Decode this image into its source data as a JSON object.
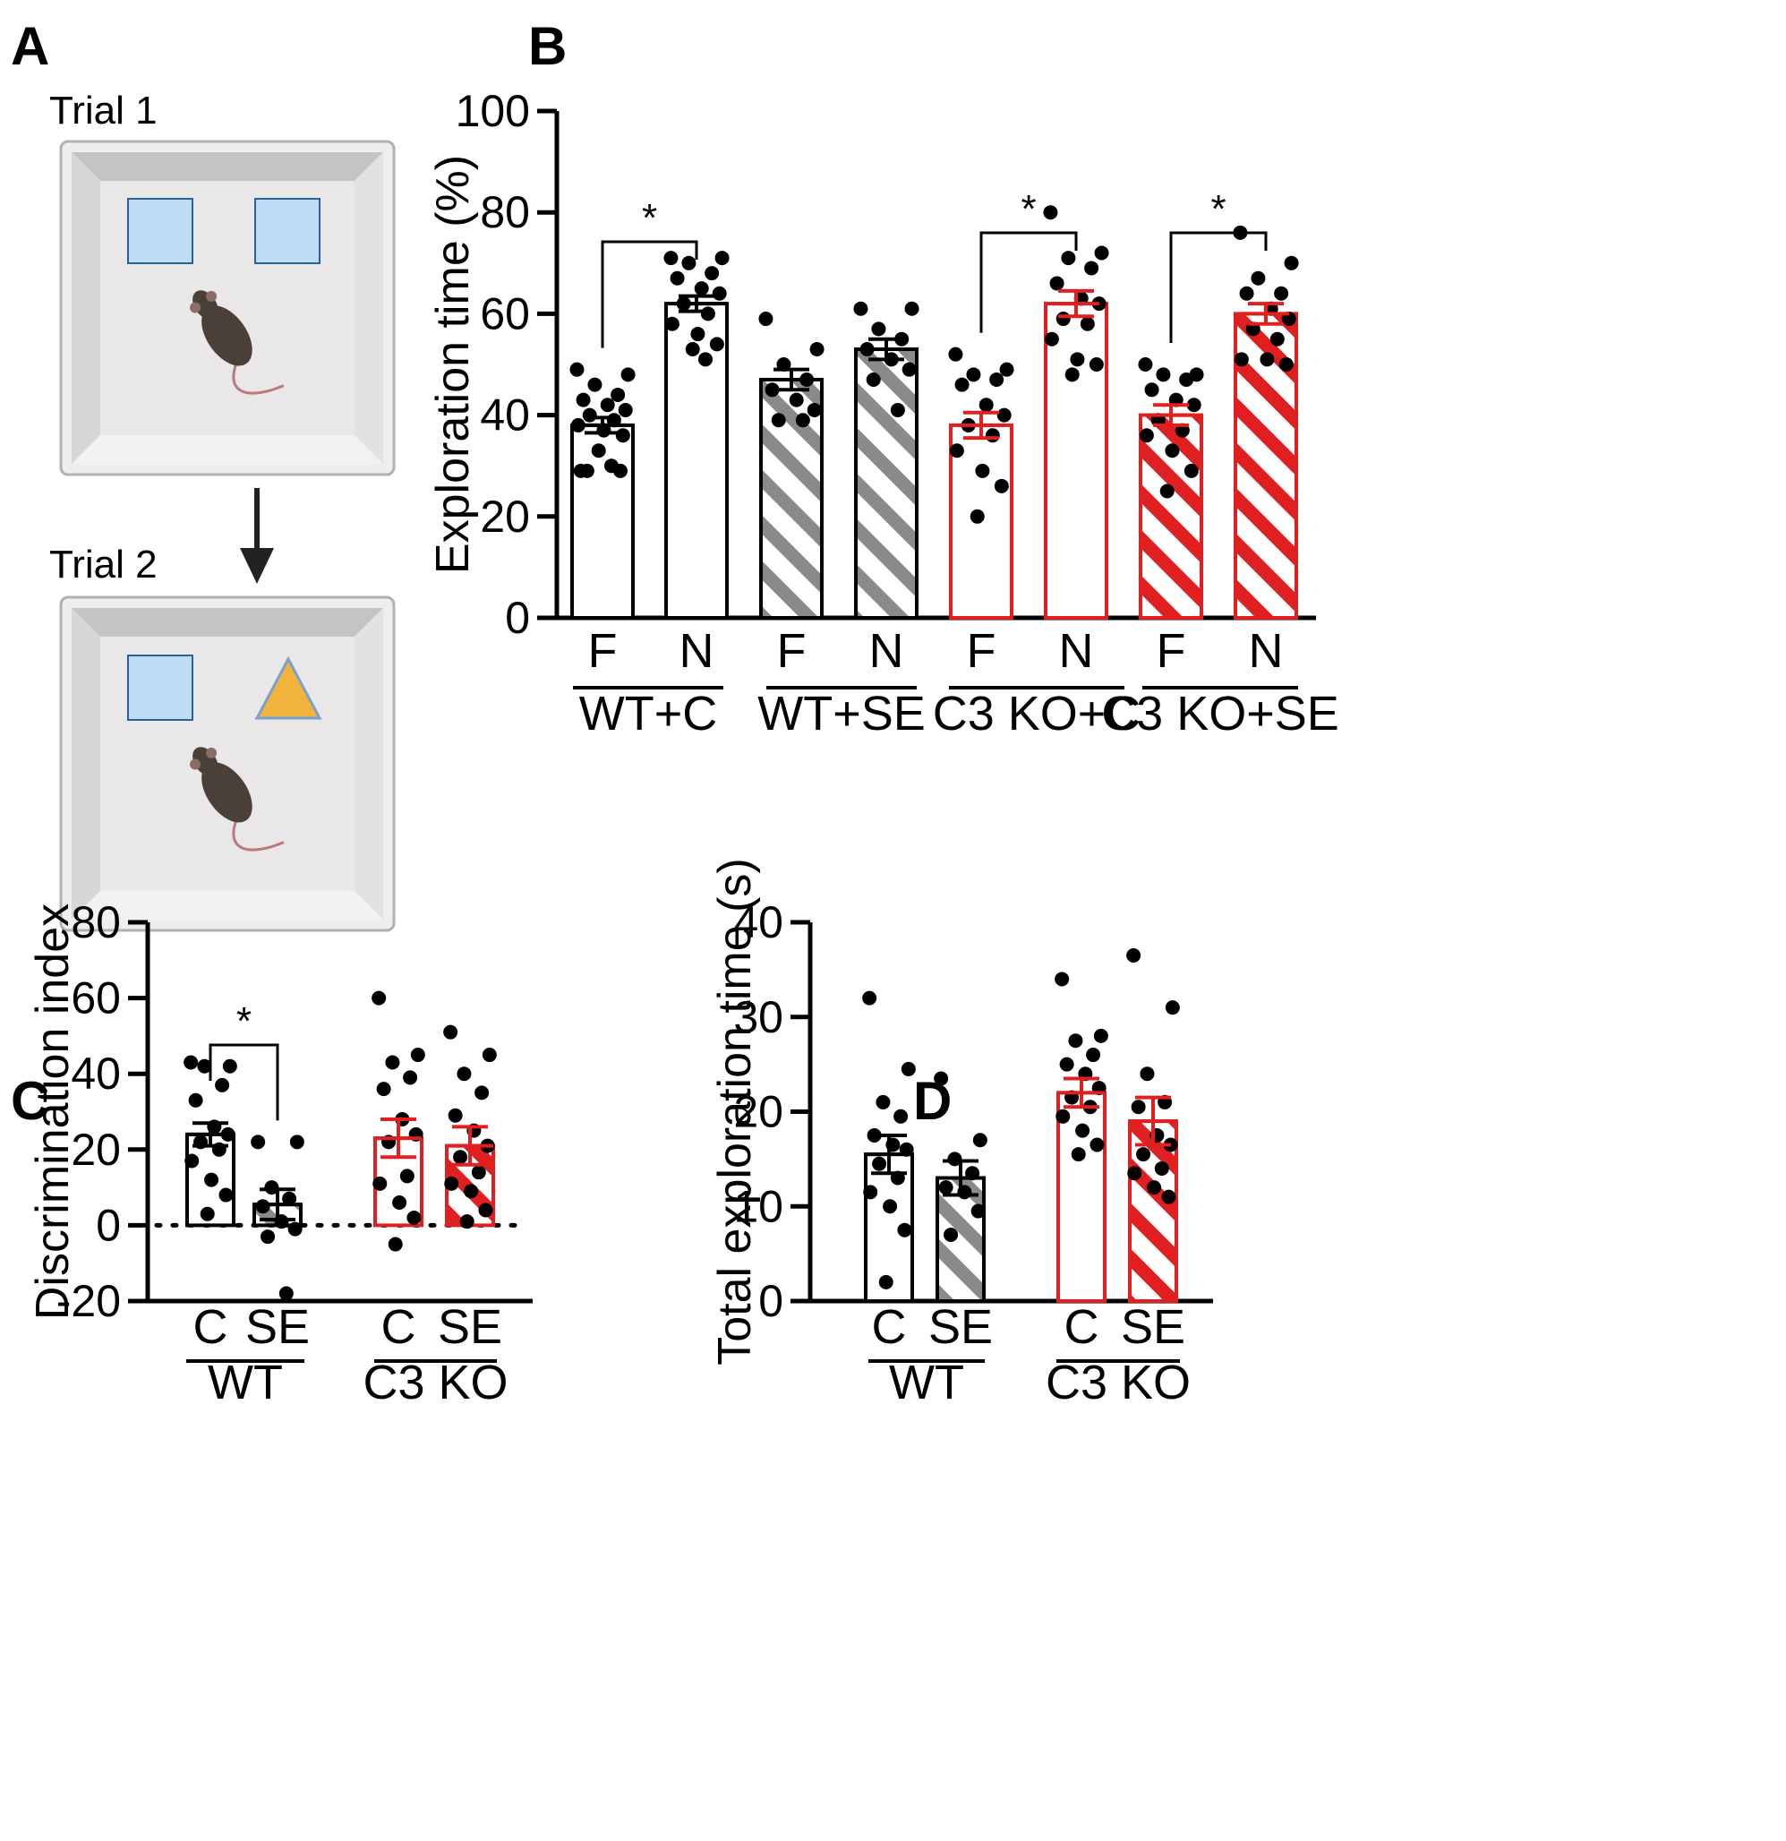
{
  "panel_labels": {
    "a": "A",
    "b": "B",
    "c": "C",
    "d": "D"
  },
  "schematic": {
    "trial1": "Trial 1",
    "trial2": "Trial 2",
    "object_colors": {
      "square": "#bcdcf4",
      "square_edge": "#2d5f9a",
      "triangle": "#f2b33d",
      "triangle_edge": "#7aa0d0"
    }
  },
  "colors": {
    "black": "#000000",
    "red": "#e02020",
    "gray": "#8a8a8a"
  },
  "chart_data": [
    {
      "id": "B",
      "type": "bar",
      "ylabel": "Exploration time (%)",
      "ylim": [
        0,
        100
      ],
      "yticks": [
        0,
        20,
        40,
        60,
        80,
        100
      ],
      "groups": [
        "WT+C",
        "WT+SE",
        "C3 KO+C",
        "C3 KO+SE"
      ],
      "bars": [
        {
          "label": "F",
          "group": "WT+C",
          "mean": 38,
          "sem": 1.5,
          "color": "black",
          "hatch": false,
          "points": [
            49,
            48,
            46,
            44,
            43,
            42,
            41,
            40,
            39,
            38,
            37,
            36,
            33,
            30,
            29,
            29,
            29
          ]
        },
        {
          "label": "N",
          "group": "WT+C",
          "mean": 62,
          "sem": 1.5,
          "color": "black",
          "hatch": false,
          "points": [
            71,
            71,
            70,
            68,
            67,
            65,
            64,
            62,
            60,
            58,
            56,
            54,
            53,
            51
          ]
        },
        {
          "label": "F",
          "group": "WT+SE",
          "mean": 47,
          "sem": 2,
          "color": "gray",
          "hatch": true,
          "points": [
            59,
            53,
            50,
            47,
            45,
            43,
            41,
            39,
            39
          ]
        },
        {
          "label": "N",
          "group": "WT+SE",
          "mean": 53,
          "sem": 2,
          "color": "gray",
          "hatch": true,
          "points": [
            61,
            61,
            57,
            55,
            53,
            51,
            49,
            47,
            41
          ]
        },
        {
          "label": "F",
          "group": "C3 KO+C",
          "mean": 38,
          "sem": 2.5,
          "color": "red",
          "hatch": false,
          "points": [
            52,
            49,
            48,
            47,
            46,
            42,
            40,
            38,
            36,
            33,
            29,
            26,
            20
          ]
        },
        {
          "label": "N",
          "group": "C3 KO+C",
          "mean": 62,
          "sem": 2.5,
          "color": "red",
          "hatch": false,
          "points": [
            80,
            72,
            71,
            69,
            66,
            63,
            62,
            59,
            58,
            55,
            51,
            50,
            48
          ]
        },
        {
          "label": "F",
          "group": "C3 KO+SE",
          "mean": 40,
          "sem": 2,
          "color": "red",
          "hatch": true,
          "points": [
            50,
            48,
            48,
            47,
            45,
            43,
            42,
            39,
            37,
            36,
            33,
            29,
            25
          ]
        },
        {
          "label": "N",
          "group": "C3 KO+SE",
          "mean": 60,
          "sem": 2,
          "color": "red",
          "hatch": true,
          "points": [
            76,
            70,
            67,
            64,
            64,
            61,
            59,
            57,
            55,
            51,
            51,
            50
          ]
        }
      ],
      "significance": [
        {
          "from": 0,
          "to": 1,
          "label": "*"
        },
        {
          "from": 4,
          "to": 5,
          "label": "*"
        },
        {
          "from": 6,
          "to": 7,
          "label": "*"
        }
      ]
    },
    {
      "id": "C",
      "type": "bar",
      "ylabel": "Discrimination index",
      "ylim": [
        -20,
        80
      ],
      "yticks": [
        -20,
        0,
        20,
        40,
        60,
        80
      ],
      "reference_line": 0,
      "groups": [
        "WT",
        "C3 KO"
      ],
      "bars": [
        {
          "label": "C",
          "group": "WT",
          "mean": 24,
          "sem": 3,
          "color": "black",
          "hatch": false,
          "points": [
            43,
            42,
            42,
            37,
            33,
            26,
            24,
            22,
            20,
            17,
            12,
            8,
            3
          ]
        },
        {
          "label": "SE",
          "group": "WT",
          "mean": 5.5,
          "sem": 4,
          "color": "gray",
          "hatch": true,
          "points": [
            22,
            22,
            10,
            7,
            5,
            1,
            -1,
            -3,
            -18
          ]
        },
        {
          "label": "C",
          "group": "C3 KO",
          "mean": 23,
          "sem": 5,
          "color": "red",
          "hatch": false,
          "points": [
            60,
            45,
            43,
            39,
            36,
            28,
            24,
            22,
            13,
            11,
            6,
            2,
            -5
          ]
        },
        {
          "label": "SE",
          "group": "C3 KO",
          "mean": 21,
          "sem": 5,
          "color": "red",
          "hatch": true,
          "points": [
            51,
            45,
            40,
            35,
            29,
            25,
            21,
            18,
            14,
            11,
            9,
            4,
            1
          ]
        }
      ],
      "significance": [
        {
          "from": 0,
          "to": 1,
          "label": "*"
        }
      ]
    },
    {
      "id": "D",
      "type": "bar",
      "ylabel": "Total exploration time (s)",
      "ylim": [
        0,
        40
      ],
      "yticks": [
        0,
        10,
        20,
        30,
        40
      ],
      "groups": [
        "WT",
        "C3 KO"
      ],
      "bars": [
        {
          "label": "C",
          "group": "WT",
          "mean": 15.5,
          "sem": 2,
          "color": "black",
          "hatch": false,
          "points": [
            32,
            24.5,
            21,
            19.5,
            17.5,
            16.5,
            16,
            14.5,
            13,
            11.5,
            10,
            7.5,
            2
          ]
        },
        {
          "label": "SE",
          "group": "WT",
          "mean": 13,
          "sem": 1.8,
          "color": "gray",
          "hatch": true,
          "points": [
            23.5,
            17,
            15,
            13.5,
            12,
            11.5,
            9.5,
            7
          ]
        },
        {
          "label": "C",
          "group": "C3 KO",
          "mean": 22,
          "sem": 1.5,
          "color": "red",
          "hatch": false,
          "points": [
            34,
            28,
            27.5,
            26,
            25,
            24,
            22.5,
            21.5,
            20.5,
            19.5,
            18,
            16.5,
            15.5
          ]
        },
        {
          "label": "SE",
          "group": "C3 KO",
          "mean": 19,
          "sem": 2.5,
          "color": "red",
          "hatch": true,
          "points": [
            36.5,
            31,
            24,
            21,
            20.5,
            17.5,
            16.5,
            15.5,
            14,
            13.5,
            12,
            11
          ]
        }
      ]
    }
  ]
}
